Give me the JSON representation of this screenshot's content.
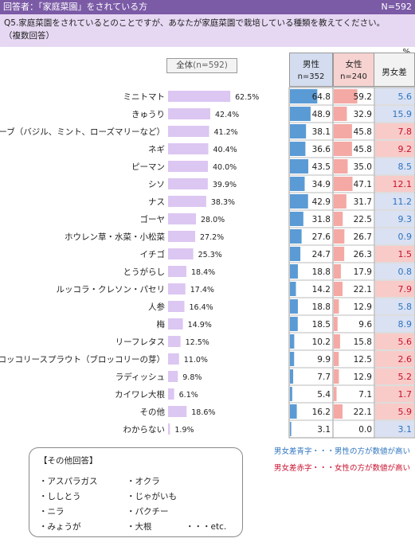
{
  "header": {
    "respondents": "回答者：「家庭菜園」をされている方",
    "n_total": "N=592"
  },
  "question": {
    "line1": "Q5.家庭菜園をされているとのことですが、あなたが家庭菜園で栽培している種類を教えてください。",
    "line2": "（複数回答）"
  },
  "unit_label": "%",
  "total_label": "全体",
  "total_n": "(n=592)",
  "columns": {
    "male_label": "男性",
    "male_n": "n=352",
    "female_label": "女性",
    "female_n": "n=240",
    "diff_label": "男女差"
  },
  "colors": {
    "header_bg": "#7b5aa6",
    "question_bg": "#e6d8f3",
    "total_bar": "#dcc6f2",
    "male_bar": "#5b9bd5",
    "female_bar": "#f4a9a4",
    "diff_blue_bg": "#d9e1f2",
    "diff_red_bg": "#f8cbc8",
    "diff_blue_text": "#2e74c0",
    "diff_red_text": "#c8102e"
  },
  "chart_data": {
    "type": "bar",
    "unit": "%",
    "categories": [
      "ミニトマト",
      "きゅうり",
      "ハーブ（バジル、ミント、ローズマリーなど）",
      "ネギ",
      "ピーマン",
      "シソ",
      "ナス",
      "ゴーヤ",
      "ホウレン草・水菜・小松菜",
      "イチゴ",
      "とうがらし",
      "ルッコラ・クレソン・パセリ",
      "人参",
      "梅",
      "リーフレタス",
      "ブロッコリースプラウト（ブロッコリーの芽）",
      "ラディッシュ",
      "カイワレ大根",
      "その他",
      "わからない"
    ],
    "total_values": [
      62.5,
      42.4,
      41.2,
      40.4,
      40.0,
      39.9,
      38.3,
      28.0,
      27.2,
      25.3,
      18.4,
      17.4,
      16.4,
      14.9,
      12.5,
      11.0,
      9.8,
      6.1,
      18.6,
      1.9
    ],
    "total_labels": [
      "62.5%",
      "42.4%",
      "41.2%",
      "40.4%",
      "40.0%",
      "39.9%",
      "38.3%",
      "28.0%",
      "27.2%",
      "25.3%",
      "18.4%",
      "17.4%",
      "16.4%",
      "14.9%",
      "12.5%",
      "11.0%",
      "9.8%",
      "6.1%",
      "18.6%",
      "1.9%"
    ],
    "series": [
      {
        "name": "男性",
        "values": [
          64.8,
          48.9,
          38.1,
          36.6,
          43.5,
          34.9,
          42.9,
          31.8,
          27.6,
          24.7,
          18.8,
          14.2,
          18.8,
          18.5,
          10.2,
          9.9,
          7.7,
          5.4,
          16.2,
          3.1
        ],
        "labels": [
          "64.8",
          "48.9",
          "38.1",
          "36.6",
          "43.5",
          "34.9",
          "42.9",
          "31.8",
          "27.6",
          "24.7",
          "18.8",
          "14.2",
          "18.8",
          "18.5",
          "10.2",
          "9.9",
          "7.7",
          "5.4",
          "16.2",
          "3.1"
        ]
      },
      {
        "name": "女性",
        "values": [
          59.2,
          32.9,
          45.8,
          45.8,
          35.0,
          47.1,
          31.7,
          22.5,
          26.7,
          26.3,
          17.9,
          22.1,
          12.9,
          9.6,
          15.8,
          12.5,
          12.9,
          7.1,
          22.1,
          0.0
        ],
        "labels": [
          "59.2",
          "32.9",
          "45.8",
          "45.8",
          "35.0",
          "47.1",
          "31.7",
          "22.5",
          "26.7",
          "26.3",
          "17.9",
          "22.1",
          "12.9",
          "9.6",
          "15.8",
          "12.5",
          "12.9",
          "7.1",
          "22.1",
          "0.0"
        ]
      }
    ],
    "diff_values": [
      5.6,
      15.9,
      7.8,
      9.2,
      8.5,
      12.1,
      11.2,
      9.3,
      0.9,
      1.5,
      0.8,
      7.9,
      5.8,
      8.9,
      5.6,
      2.6,
      5.2,
      1.7,
      5.9,
      3.1
    ],
    "diff_labels": [
      "5.6",
      "15.9",
      "7.8",
      "9.2",
      "8.5",
      "12.1",
      "11.2",
      "9.3",
      "0.9",
      "1.5",
      "0.8",
      "7.9",
      "5.8",
      "8.9",
      "5.6",
      "2.6",
      "5.2",
      "1.7",
      "5.9",
      "3.1"
    ],
    "diff_higher": [
      "male",
      "male",
      "female",
      "female",
      "male",
      "female",
      "male",
      "male",
      "male",
      "female",
      "male",
      "female",
      "male",
      "male",
      "female",
      "female",
      "female",
      "female",
      "female",
      "male"
    ]
  },
  "notes": {
    "blue": "男女差青字・・・男性の方が数値が高い",
    "red": "男女差赤字・・・女性の方が数値が高い"
  },
  "other_answers": {
    "title": "【その他回答】",
    "items": [
      "・アスパラガス",
      "・オクラ",
      "・ししとう",
      "・じゃがいも",
      "・ニラ",
      "・パクチー",
      "・みょうが",
      "・大根",
      "・・・etc."
    ]
  }
}
